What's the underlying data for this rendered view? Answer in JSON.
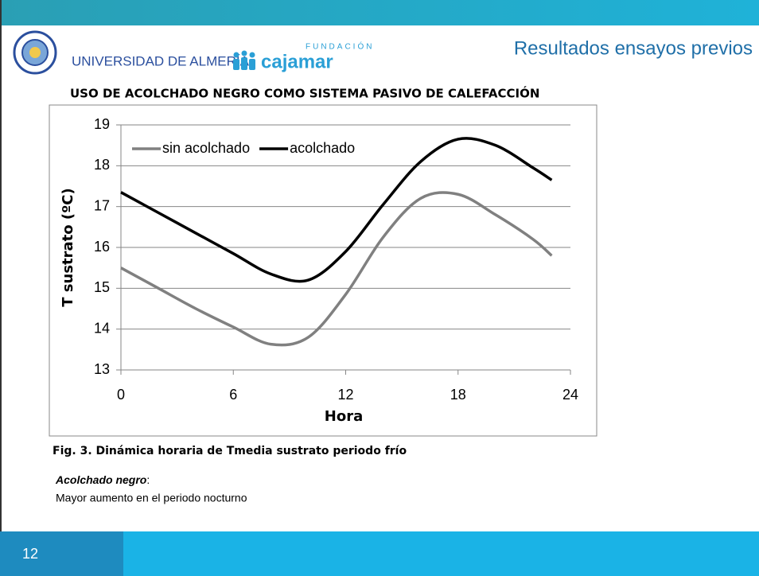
{
  "header": {
    "university": "UNIVERSIDAD DE ALMERÍA",
    "foundation_label": "FUNDACIÓN",
    "foundation": "cajamar",
    "title": "Resultados ensayos previos"
  },
  "chart_data": {
    "type": "line",
    "title": "USO DE ACOLCHADO NEGRO COMO SISTEMA PASIVO DE CALEFACCIÓN",
    "x_label": "Hora",
    "y_label": "T sustrato (ºC)",
    "x": [
      0,
      2,
      4,
      6,
      8,
      10,
      12,
      14,
      16,
      18,
      20,
      22,
      23
    ],
    "series": [
      {
        "name": "sin acolchado",
        "color": "#808080",
        "values": [
          15.5,
          15.0,
          14.5,
          14.05,
          13.63,
          13.8,
          14.85,
          16.25,
          17.2,
          17.3,
          16.8,
          16.2,
          15.8
        ]
      },
      {
        "name": "acolchado",
        "color": "#000000",
        "values": [
          17.35,
          16.85,
          16.35,
          15.85,
          15.35,
          15.2,
          15.9,
          17.05,
          18.1,
          18.65,
          18.5,
          17.95,
          17.65
        ]
      }
    ],
    "xlim": [
      0,
      24
    ],
    "xticks": [
      0,
      6,
      12,
      18,
      24
    ],
    "ylim": [
      13,
      19
    ],
    "yticks": [
      13,
      14,
      15,
      16,
      17,
      18,
      19
    ],
    "grid": true,
    "legend": "top-left",
    "smooth": true
  },
  "caption": "Fig. 3. Dinámica horaria de Tmedia sustrato periodo frío",
  "note": {
    "heading": "Acolchado negro",
    "punct": ":",
    "text": "Mayor aumento en el periodo nocturno"
  },
  "slide_number": "12"
}
